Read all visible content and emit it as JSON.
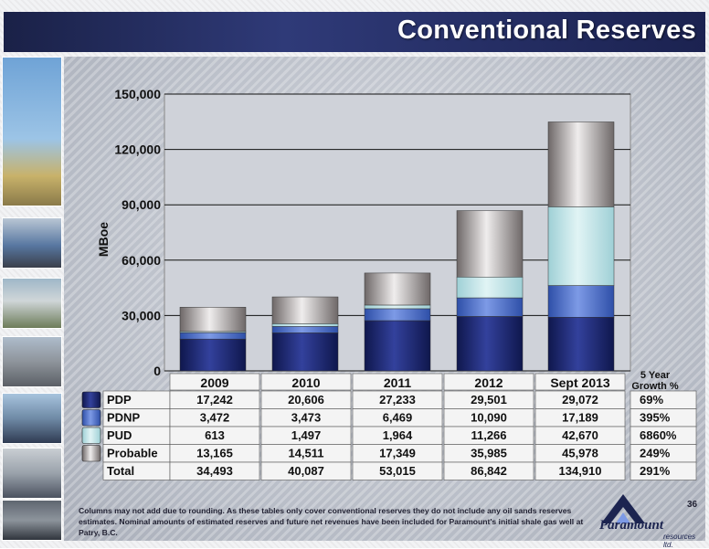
{
  "slide": {
    "title": "Conventional Reserves",
    "page_number": "36",
    "footnote": "Columns may not add due to rounding. As these tables only cover conventional reserves they do not include any oil sands reserves estimates. Nominal amounts of estimated reserves and future net revenues have been included for Paramount's initial shale gas well at Patry, B.C.",
    "logo_text": "Paramount",
    "logo_subtext": "resources ltd."
  },
  "chart_data": {
    "type": "bar",
    "stacked": true,
    "ylabel": "MBoe",
    "ylim": [
      0,
      150000
    ],
    "yticks": [
      0,
      30000,
      60000,
      90000,
      120000,
      150000
    ],
    "ytick_labels": [
      "0",
      "30,000",
      "60,000",
      "90,000",
      "120,000",
      "150,000"
    ],
    "grid": true,
    "categories": [
      "2009",
      "2010",
      "2011",
      "2012",
      "Sept 2013"
    ],
    "series": [
      {
        "name": "PDP",
        "values": [
          17242,
          20606,
          27233,
          29501,
          29072
        ],
        "color": "#1e2a7a"
      },
      {
        "name": "PDNP",
        "values": [
          3472,
          3473,
          6469,
          10090,
          17189
        ],
        "color": "#4f74cf"
      },
      {
        "name": "PUD",
        "values": [
          613,
          1497,
          1964,
          11266,
          42670
        ],
        "color": "#b9e2e6"
      },
      {
        "name": "Probable",
        "values": [
          13165,
          14511,
          17349,
          35985,
          45978
        ],
        "color": "#b2adad"
      }
    ],
    "totals": {
      "name": "Total",
      "values": [
        34493,
        40087,
        53015,
        86842,
        134910
      ]
    },
    "growth_header": [
      "5 Year",
      "Growth %"
    ],
    "growth": [
      "69%",
      "395%",
      "6860%",
      "249%",
      "291%"
    ],
    "value_labels": {
      "PDP": [
        "17,242",
        "20,606",
        "27,233",
        "29,501",
        "29,072"
      ],
      "PDNP": [
        "3,472",
        "3,473",
        "6,469",
        "10,090",
        "17,189"
      ],
      "PUD": [
        "613",
        "1,497",
        "1,964",
        "11,266",
        "42,670"
      ],
      "Probable": [
        "13,165",
        "14,511",
        "17,349",
        "35,985",
        "45,978"
      ],
      "Total": [
        "34,493",
        "40,087",
        "53,015",
        "86,842",
        "134,910"
      ]
    }
  }
}
